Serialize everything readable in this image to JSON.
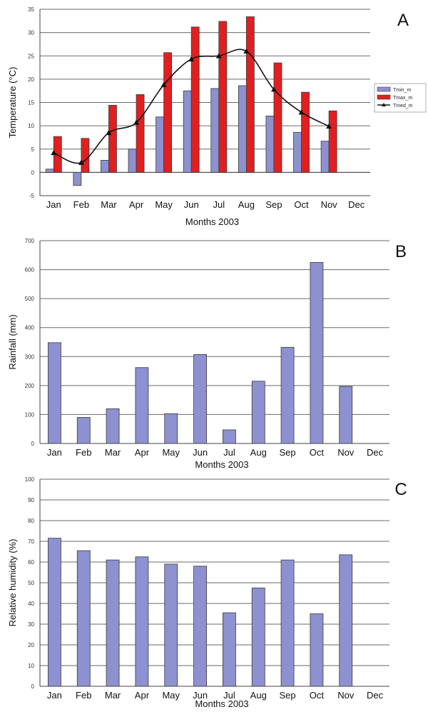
{
  "chart_data": [
    {
      "type": "bar",
      "panel_label": "A",
      "xlabel": "Months 2003",
      "ylabel": "Temperature (°C)",
      "ylim": [
        -5,
        35
      ],
      "yticks": [
        -5,
        0,
        5,
        10,
        15,
        20,
        25,
        30,
        35
      ],
      "grid": true,
      "legend_position": "right",
      "categories": [
        "Jan",
        "Feb",
        "Mar",
        "Apr",
        "May",
        "Jun",
        "Jul",
        "Aug",
        "Sep",
        "Oct",
        "Nov",
        "Dec"
      ],
      "series": [
        {
          "name": "Tmin_m",
          "kind": "bar",
          "color": "#8e91cf",
          "values": [
            0.7,
            -2.8,
            2.6,
            5.0,
            11.9,
            17.5,
            18.0,
            18.6,
            12.1,
            8.6,
            6.7,
            null
          ]
        },
        {
          "name": "Tmax_m",
          "kind": "bar",
          "color": "#e02020",
          "values": [
            7.7,
            7.3,
            14.4,
            16.7,
            25.7,
            31.2,
            32.4,
            33.4,
            23.5,
            17.2,
            13.2,
            null
          ]
        },
        {
          "name": "Tmed_m",
          "kind": "line",
          "color": "#111111",
          "values": [
            4.2,
            2.1,
            8.5,
            10.7,
            18.8,
            24.3,
            25.0,
            26.0,
            17.8,
            12.9,
            9.9,
            null
          ]
        }
      ]
    },
    {
      "type": "bar",
      "panel_label": "B",
      "xlabel": "Months 2003",
      "ylabel": "Rainfall (mm)",
      "ylim": [
        0,
        700
      ],
      "yticks": [
        0,
        100,
        200,
        300,
        400,
        500,
        600,
        700
      ],
      "grid": true,
      "categories": [
        "Jan",
        "Feb",
        "Mar",
        "Apr",
        "May",
        "Jun",
        "Jul",
        "Aug",
        "Sep",
        "Oct",
        "Nov",
        "Dec"
      ],
      "series": [
        {
          "kind": "bar",
          "color": "#8e91cf",
          "values": [
            348,
            90,
            120,
            262,
            103,
            307,
            47,
            215,
            332,
            625,
            197,
            null
          ]
        }
      ]
    },
    {
      "type": "bar",
      "panel_label": "C",
      "xlabel": "Months 2003",
      "ylabel": "Relative humidity (%)",
      "ylim": [
        0,
        100
      ],
      "yticks": [
        0,
        10,
        20,
        30,
        40,
        50,
        60,
        70,
        80,
        90,
        100
      ],
      "grid": true,
      "categories": [
        "Jan",
        "Feb",
        "Mar",
        "Apr",
        "May",
        "Jun",
        "Jul",
        "Aug",
        "Sep",
        "Oct",
        "Nov",
        "Dec"
      ],
      "series": [
        {
          "kind": "bar",
          "color": "#8e91cf",
          "values": [
            71.5,
            65.5,
            61,
            62.5,
            59,
            58,
            35.5,
            47.5,
            61,
            35,
            63.5,
            null
          ]
        }
      ]
    }
  ]
}
